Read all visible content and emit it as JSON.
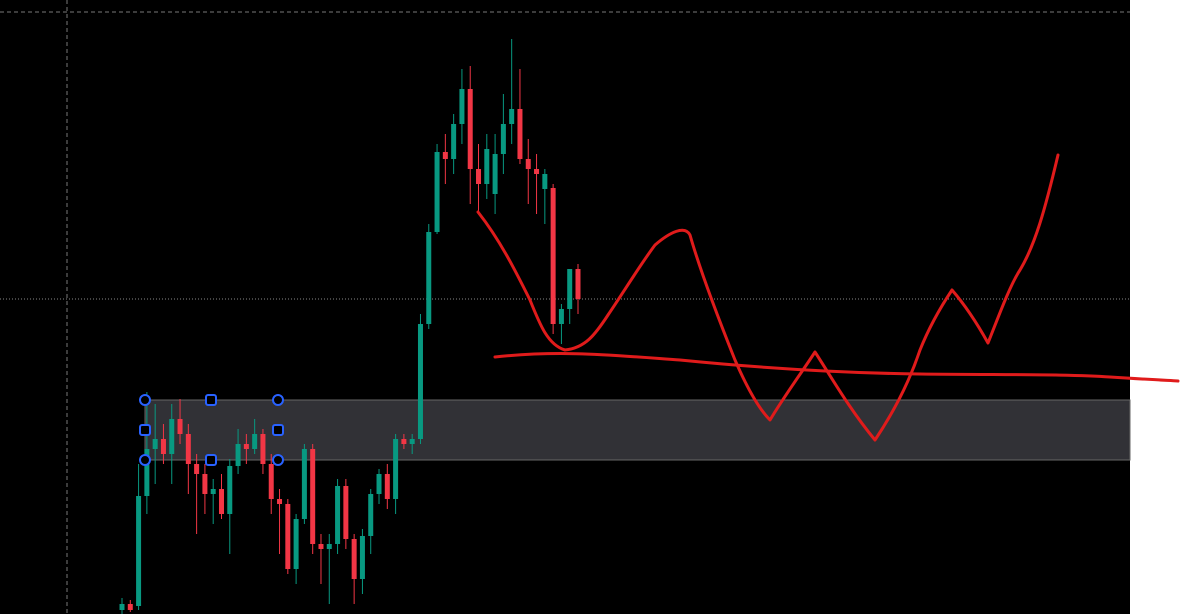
{
  "chart_data": {
    "type": "candlestick",
    "up_color": "#089981",
    "down_color": "#f23645",
    "ylim": [
      0,
      614
    ],
    "ohlc": [
      [
        4,
        16,
        0,
        10
      ],
      [
        10,
        14,
        2,
        4
      ],
      [
        8,
        150,
        4,
        118
      ],
      [
        118,
        222,
        100,
        165
      ],
      [
        165,
        210,
        130,
        175
      ],
      [
        175,
        190,
        150,
        160
      ],
      [
        160,
        210,
        130,
        195
      ],
      [
        195,
        215,
        170,
        180
      ],
      [
        180,
        190,
        120,
        150
      ],
      [
        150,
        160,
        80,
        140
      ],
      [
        140,
        150,
        100,
        120
      ],
      [
        120,
        135,
        90,
        125
      ],
      [
        125,
        140,
        95,
        100
      ],
      [
        100,
        155,
        60,
        148
      ],
      [
        148,
        185,
        140,
        170
      ],
      [
        170,
        180,
        150,
        165
      ],
      [
        165,
        195,
        160,
        180
      ],
      [
        180,
        185,
        140,
        150
      ],
      [
        150,
        160,
        100,
        115
      ],
      [
        115,
        125,
        60,
        110
      ],
      [
        110,
        115,
        40,
        45
      ],
      [
        45,
        100,
        30,
        95
      ],
      [
        95,
        170,
        90,
        165
      ],
      [
        165,
        170,
        60,
        70
      ],
      [
        70,
        80,
        30,
        65
      ],
      [
        65,
        80,
        10,
        70
      ],
      [
        70,
        135,
        60,
        128
      ],
      [
        128,
        135,
        65,
        75
      ],
      [
        75,
        80,
        10,
        35
      ],
      [
        35,
        85,
        20,
        78
      ],
      [
        78,
        125,
        60,
        120
      ],
      [
        120,
        145,
        110,
        140
      ],
      [
        140,
        150,
        105,
        115
      ],
      [
        115,
        180,
        100,
        175
      ],
      [
        175,
        180,
        165,
        170
      ],
      [
        170,
        180,
        160,
        175
      ],
      [
        175,
        300,
        170,
        290
      ],
      [
        290,
        390,
        285,
        382
      ],
      [
        382,
        470,
        380,
        462
      ],
      [
        462,
        480,
        430,
        455
      ],
      [
        455,
        500,
        440,
        490
      ],
      [
        490,
        545,
        470,
        525
      ],
      [
        525,
        548,
        410,
        445
      ],
      [
        445,
        470,
        400,
        430
      ],
      [
        430,
        480,
        415,
        465
      ],
      [
        420,
        480,
        400,
        460
      ],
      [
        460,
        520,
        440,
        490
      ],
      [
        490,
        575,
        470,
        505
      ],
      [
        505,
        545,
        450,
        455
      ],
      [
        455,
        475,
        410,
        445
      ],
      [
        445,
        460,
        400,
        440
      ],
      [
        425,
        445,
        390,
        440
      ],
      [
        426,
        430,
        280,
        290
      ],
      [
        290,
        310,
        270,
        305
      ],
      [
        305,
        345,
        290,
        345
      ],
      [
        345,
        350,
        300,
        315
      ]
    ]
  }
}
